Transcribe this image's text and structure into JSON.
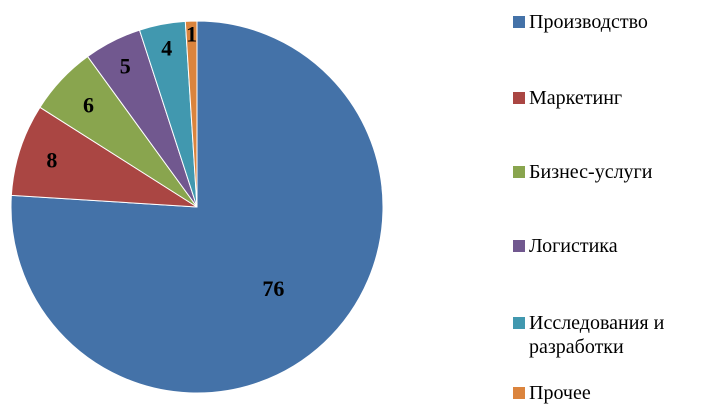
{
  "chart_data": {
    "type": "pie",
    "title": "",
    "start_angle_deg": 0,
    "direction": "clockwise",
    "slices": [
      {
        "label": "Производство",
        "value": 76,
        "value_label": "76",
        "color": "#4472A8"
      },
      {
        "label": "Маркетинг",
        "value": 8,
        "value_label": "8",
        "color": "#AA4643"
      },
      {
        "label": "Бизнес-услуги",
        "value": 6,
        "value_label": "6",
        "color": "#89A54E"
      },
      {
        "label": "Логистика",
        "value": 5,
        "value_label": "5",
        "color": "#71588F"
      },
      {
        "label": "Исследования и разработки",
        "value": 4,
        "value_label": "4",
        "color": "#4198AF"
      },
      {
        "label": "Прочее",
        "value": 1,
        "value_label": "1",
        "color": "#DB843D"
      }
    ],
    "legend_position": "right"
  }
}
